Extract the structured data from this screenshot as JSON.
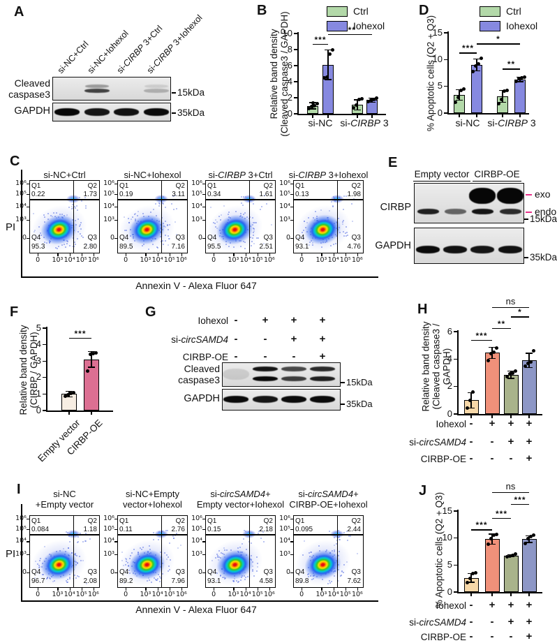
{
  "colors": {
    "ctrl": "#b3d9a9",
    "iohexol": "#8689e0",
    "peach": "#f7d8a8",
    "salmon": "#f0917a",
    "olive": "#a9b38b",
    "blue": "#8d97c6",
    "cream": "#f7eee3",
    "pink": "#dc6f92",
    "marker_pink": "#e8308a",
    "band": "#000000"
  },
  "flow": {
    "x_label": "Annexin V - Alexa Fluor 647",
    "y_label": "PI",
    "x_ticks": [
      "0",
      "10³",
      "10⁴",
      "10⁵",
      "10⁶"
    ],
    "y_ticks": [
      "10⁶",
      "10⁵",
      "10⁴",
      "10³",
      "0"
    ],
    "quadrant_labels": [
      "Q1",
      "Q2",
      "Q3",
      "Q4"
    ]
  },
  "panels": {
    "A": {
      "label": "A",
      "lane_labels": [
        [
          [
            "si-NC+Ctrl",
            0
          ]
        ],
        [
          [
            "si-NC+Iohexol",
            0
          ]
        ],
        [
          [
            "si-",
            0
          ],
          [
            "CIRBP",
            1
          ],
          [
            " 3+Ctrl",
            0
          ]
        ],
        [
          [
            "si-",
            0
          ],
          [
            "CIRBP",
            1
          ],
          [
            " 3+Iohexol",
            0
          ]
        ]
      ],
      "row_labels": [
        [
          "Cleaved",
          "caspase3"
        ],
        [
          "GAPDH"
        ]
      ],
      "markers": [
        "15kDa",
        "35kDa"
      ],
      "bands": {
        "cleaved_caspase3": [
          0,
          0.7,
          0,
          0.22
        ],
        "gapdh": [
          0.97,
          0.9,
          0.92,
          0.95
        ]
      }
    },
    "B": {
      "label": "B"
    },
    "C": {
      "label": "C",
      "plots": [
        {
          "title": [
            [
              [
                "si-NC+Ctrl",
                0
              ]
            ]
          ],
          "q1": "0.22",
          "q2": "1.73",
          "q3": "2.80",
          "q4": "95.3"
        },
        {
          "title": [
            [
              [
                "si-NC+Iohexol",
                0
              ]
            ]
          ],
          "q1": "0.19",
          "q2": "3.11",
          "q3": "7.16",
          "q4": "89.5"
        },
        {
          "title": [
            [
              [
                "si-",
                0
              ],
              [
                "CIRBP",
                1
              ],
              [
                " 3+Ctrl",
                0
              ]
            ]
          ],
          "q1": "0.34",
          "q2": "1.61",
          "q3": "2.51",
          "q4": "95.5"
        },
        {
          "title": [
            [
              [
                "si-",
                0
              ],
              [
                "CIRBP",
                1
              ],
              [
                " 3+Iohexol",
                0
              ]
            ]
          ],
          "q1": "0.13",
          "q2": "1.98",
          "q3": "4.76",
          "q4": "93.1"
        }
      ]
    },
    "D": {
      "label": "D"
    },
    "E": {
      "label": "E",
      "column_headers": [
        "Empty vector",
        "CIRBP-OE"
      ],
      "row_labels": [
        "CIRBP",
        "GAPDH"
      ],
      "annotations": [
        "exo",
        "endo"
      ],
      "markers": [
        "15kDa",
        "35kDa"
      ],
      "bands": {
        "cirbp_exo": [
          0,
          0,
          1,
          1
        ],
        "cirbp_endo": [
          0.85,
          0.55,
          0.9,
          0.8
        ],
        "gapdh": [
          0.95,
          0.92,
          0.9,
          0.92
        ]
      }
    },
    "F": {
      "label": "F"
    },
    "G": {
      "label": "G",
      "treatments": [
        {
          "label": [
            [
              "Iohexol",
              0
            ]
          ],
          "cells": [
            "-",
            "+",
            "+",
            "+"
          ]
        },
        {
          "label": [
            [
              "si-",
              0
            ],
            [
              "circSAMD4",
              1
            ]
          ],
          "cells": [
            "-",
            "-",
            "+",
            "+"
          ]
        },
        {
          "label": [
            [
              "CIRBP-OE",
              0
            ]
          ],
          "cells": [
            "-",
            "-",
            "-",
            "+"
          ]
        }
      ],
      "row_labels": [
        [
          "Cleaved",
          "caspase3"
        ],
        [
          "GAPDH"
        ]
      ],
      "markers": [
        "15kDa",
        "35kDa"
      ],
      "bands": {
        "cleaved_caspase3": [
          0.12,
          0.95,
          0.72,
          0.85
        ],
        "gapdh": [
          0.95,
          0.9,
          0.95,
          0.95
        ]
      }
    },
    "H": {
      "label": "H"
    },
    "I": {
      "label": "I",
      "plots": [
        {
          "title": [
            [
              [
                "si-NC",
                0
              ]
            ],
            [
              [
                "+Empty vector",
                0
              ]
            ]
          ],
          "q1": "0.084",
          "q2": "1.18",
          "q3": "2.08",
          "q4": "96.7"
        },
        {
          "title": [
            [
              [
                "si-NC+Empty",
                0
              ]
            ],
            [
              [
                "vector+Iohexol",
                0
              ]
            ]
          ],
          "q1": "0.11",
          "q2": "2.76",
          "q3": "7.96",
          "q4": "89.2"
        },
        {
          "title": [
            [
              [
                "si-",
                0
              ],
              [
                "circSAMD4",
                1
              ],
              [
                "+",
                0
              ]
            ],
            [
              [
                "Empty vector+Iohexol",
                0
              ]
            ]
          ],
          "q1": "0.15",
          "q2": "2.18",
          "q3": "4.58",
          "q4": "93.1"
        },
        {
          "title": [
            [
              [
                "si-",
                0
              ],
              [
                "circSAMD4",
                1
              ],
              [
                "+",
                0
              ]
            ],
            [
              [
                "CIRBP-OE+Iohexol",
                0
              ]
            ]
          ],
          "q1": "0.095",
          "q2": "2.44",
          "q3": "7.62",
          "q4": "89.8"
        }
      ]
    },
    "J": {
      "label": "J"
    }
  },
  "chart_data": [
    {
      "id": "B",
      "type": "bar",
      "ylabel_lines": [
        "Relative band density",
        "(Cleaved caspase3 / GAPDH)"
      ],
      "ylim": [
        0,
        10
      ],
      "yticks": [
        0,
        2,
        4,
        6,
        8,
        10
      ],
      "legend": [
        "Ctrl",
        "Iohexol"
      ],
      "categories": [
        "si-NC",
        "si-CIRBP 3"
      ],
      "bars": [
        {
          "group": "si-NC",
          "series": "Ctrl",
          "color": "ctrl",
          "value": 1.0,
          "err": 0.45,
          "dots": [
            0.65,
            0.9,
            1.0,
            1.3,
            1.35
          ]
        },
        {
          "group": "si-NC",
          "series": "Iohexol",
          "color": "iohexol",
          "value": 6.1,
          "err": 1.9,
          "dots": [
            4.5,
            4.6,
            7.4,
            8.0
          ]
        },
        {
          "group": "si-CIRBP 3",
          "series": "Ctrl",
          "color": "ctrl",
          "value": 1.1,
          "err": 0.7,
          "dots": [
            0.7,
            1.1,
            1.8,
            1.9
          ]
        },
        {
          "group": "si-CIRBP 3",
          "series": "Iohexol",
          "color": "iohexol",
          "value": 1.7,
          "err": 0.3,
          "dots": [
            1.5,
            1.7,
            1.8,
            2.0
          ]
        }
      ],
      "sig": [
        {
          "from": 0,
          "to": 1,
          "label": "***",
          "y": 8.7
        },
        {
          "from": 1,
          "to": 3,
          "label": "***",
          "y": 9.9
        }
      ],
      "group_labels": [
        [
          [
            "si-NC",
            0
          ]
        ],
        [
          [
            "si-",
            0
          ],
          [
            "CIRBP",
            1
          ],
          [
            " 3",
            0
          ]
        ]
      ]
    },
    {
      "id": "D",
      "type": "bar",
      "ylabel_lines": [
        "% Apoptotic cells (Q2 + Q3)"
      ],
      "ylim": [
        0,
        15
      ],
      "yticks": [
        0,
        5,
        10,
        15
      ],
      "legend": [
        "Ctrl",
        "Iohexol"
      ],
      "categories": [
        "si-NC",
        "si-CIRBP 3"
      ],
      "bars": [
        {
          "group": "si-NC",
          "series": "Ctrl",
          "color": "ctrl",
          "value": 3.4,
          "err": 1.1,
          "dots": [
            2.0,
            3.0,
            4.3,
            4.5
          ]
        },
        {
          "group": "si-NC",
          "series": "Iohexol",
          "color": "iohexol",
          "value": 9.0,
          "err": 1.2,
          "dots": [
            7.8,
            8.8,
            9.2,
            10.2
          ]
        },
        {
          "group": "si-CIRBP 3",
          "series": "Ctrl",
          "color": "ctrl",
          "value": 3.1,
          "err": 1.2,
          "dots": [
            1.8,
            2.6,
            4.1,
            4.2
          ]
        },
        {
          "group": "si-CIRBP 3",
          "series": "Iohexol",
          "color": "iohexol",
          "value": 6.3,
          "err": 0.5,
          "dots": [
            5.9,
            6.4,
            6.6,
            6.7
          ]
        }
      ],
      "sig": [
        {
          "from": 0,
          "to": 1,
          "label": "***",
          "y": 11.3
        },
        {
          "from": 2,
          "to": 3,
          "label": "**",
          "y": 8.3
        },
        {
          "from": 1,
          "to": 3,
          "label": "*",
          "y": 13.0
        }
      ],
      "group_labels": [
        [
          [
            "si-NC",
            0
          ]
        ],
        [
          [
            "si-",
            0
          ],
          [
            "CIRBP",
            1
          ],
          [
            " 3",
            0
          ]
        ]
      ]
    },
    {
      "id": "F",
      "type": "bar",
      "ylabel_lines": [
        "Relative band density",
        "(CIRBP / GAPDH)"
      ],
      "ylim": [
        0,
        5
      ],
      "yticks": [
        0,
        1,
        2,
        3,
        4,
        5
      ],
      "bars": [
        {
          "label": [
            [
              "Empty vector",
              0
            ]
          ],
          "color": "cream",
          "value": 1.0,
          "err": 0.2,
          "dots": [
            0.85,
            0.95,
            1.05,
            1.1
          ]
        },
        {
          "label": [
            [
              "CIRBP-OE",
              0
            ]
          ],
          "color": "pink",
          "value": 3.1,
          "err": 0.5,
          "dots": [
            2.4,
            3.4,
            3.45,
            3.5
          ]
        }
      ],
      "sig": [
        {
          "from": 0,
          "to": 1,
          "label": "***",
          "y": 4.4
        }
      ]
    },
    {
      "id": "H",
      "type": "bar",
      "ylabel_lines": [
        "Relative band density",
        "(Cleaved caspase3 /",
        "GAPDH)"
      ],
      "ylim": [
        0,
        6
      ],
      "yticks": [
        0,
        2,
        4,
        6
      ],
      "bars": [
        {
          "color": "peach",
          "value": 1.0,
          "err": 0.6,
          "dots": [
            0.45,
            1.0,
            1.6
          ]
        },
        {
          "color": "salmon",
          "value": 4.45,
          "err": 0.45,
          "dots": [
            3.9,
            4.4,
            4.5,
            4.8
          ]
        },
        {
          "color": "olive",
          "value": 2.85,
          "err": 0.3,
          "dots": [
            2.7,
            2.9,
            3.0,
            3.15
          ]
        },
        {
          "color": "blue",
          "value": 3.9,
          "err": 0.55,
          "dots": [
            3.5,
            3.7,
            3.8,
            4.6
          ]
        }
      ],
      "sig": [
        {
          "from": 0,
          "to": 1,
          "label": "***",
          "y": 5.4
        },
        {
          "from": 1,
          "to": 2,
          "label": "**",
          "y": 6.25
        },
        {
          "from": 2,
          "to": 3,
          "label": "*",
          "y": 7.1
        },
        {
          "from": 1,
          "to": 3,
          "label": "ns",
          "y": 7.8
        }
      ],
      "matrix": {
        "rows": [
          {
            "label": [
              [
                "Iohexol",
                0
              ]
            ],
            "cells": [
              "-",
              "+",
              "+",
              "+"
            ]
          },
          {
            "label": [
              [
                "si-",
                0
              ],
              [
                "circSAMD4",
                1
              ]
            ],
            "cells": [
              "-",
              "-",
              "+",
              "+"
            ]
          },
          {
            "label": [
              [
                "CIRBP-OE",
                0
              ]
            ],
            "cells": [
              "-",
              "-",
              "-",
              "+"
            ]
          }
        ]
      }
    },
    {
      "id": "J",
      "type": "bar",
      "ylabel_lines": [
        "% Apoptotic cells (Q2 + Q3)"
      ],
      "ylim": [
        0,
        15
      ],
      "yticks": [
        0,
        5,
        10,
        15
      ],
      "bars": [
        {
          "color": "peach",
          "value": 2.6,
          "err": 0.9,
          "dots": [
            1.8,
            2.5,
            3.4,
            3.5
          ]
        },
        {
          "color": "salmon",
          "value": 9.8,
          "err": 1.0,
          "dots": [
            8.8,
            9.9,
            10.5,
            10.7
          ]
        },
        {
          "color": "olive",
          "value": 6.7,
          "err": 0.3,
          "dots": [
            6.5,
            6.7,
            6.8,
            7.0
          ]
        },
        {
          "color": "blue",
          "value": 9.8,
          "err": 0.7,
          "dots": [
            9.0,
            9.9,
            10.3,
            10.5
          ]
        }
      ],
      "sig": [
        {
          "from": 0,
          "to": 1,
          "label": "***",
          "y": 11.6
        },
        {
          "from": 1,
          "to": 2,
          "label": "***",
          "y": 13.7
        },
        {
          "from": 2,
          "to": 3,
          "label": "***",
          "y": 16.3
        },
        {
          "from": 1,
          "to": 3,
          "label": "ns",
          "y": 18.5
        }
      ],
      "matrix": {
        "rows": [
          {
            "label": [
              [
                "Iohexol",
                0
              ]
            ],
            "cells": [
              "-",
              "+",
              "+",
              "+"
            ]
          },
          {
            "label": [
              [
                "si-",
                0
              ],
              [
                "circSAMD4",
                1
              ]
            ],
            "cells": [
              "-",
              "-",
              "+",
              "+"
            ]
          },
          {
            "label": [
              [
                "CIRBP-OE",
                0
              ]
            ],
            "cells": [
              "-",
              "-",
              "-",
              "+"
            ]
          }
        ]
      }
    }
  ]
}
